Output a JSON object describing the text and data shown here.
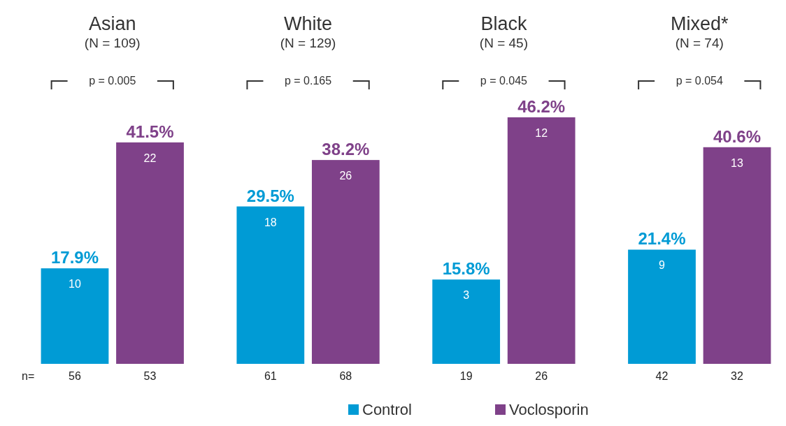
{
  "chart_data": {
    "type": "bar",
    "categories": [
      "Asian",
      "White",
      "Black",
      "Mixed*"
    ],
    "series": [
      {
        "name": "Control",
        "color": "#009bd5",
        "values": [
          17.9,
          29.5,
          15.8,
          21.4
        ],
        "value_labels": [
          "17.9%",
          "29.5%",
          "15.8%",
          "21.4%"
        ]
      },
      {
        "name": "Voclosporin",
        "color": "#7f4189",
        "values": [
          41.5,
          38.2,
          46.2,
          40.6
        ],
        "value_labels": [
          "41.5%",
          "38.2%",
          "46.2%",
          "40.6%"
        ]
      }
    ],
    "annotations": [
      "(N = 109)",
      "p = 0.005",
      "(N = 129)",
      "p = 0.165",
      "(N = 45)",
      "p = 0.045",
      "(N = 74)",
      "p = 0.054",
      "10",
      "22",
      "18",
      "26",
      "3",
      "12",
      "9",
      "13",
      "n=",
      "56",
      "53",
      "61",
      "68",
      "19",
      "26",
      "42",
      "32"
    ],
    "legend": "bottom"
  }
}
